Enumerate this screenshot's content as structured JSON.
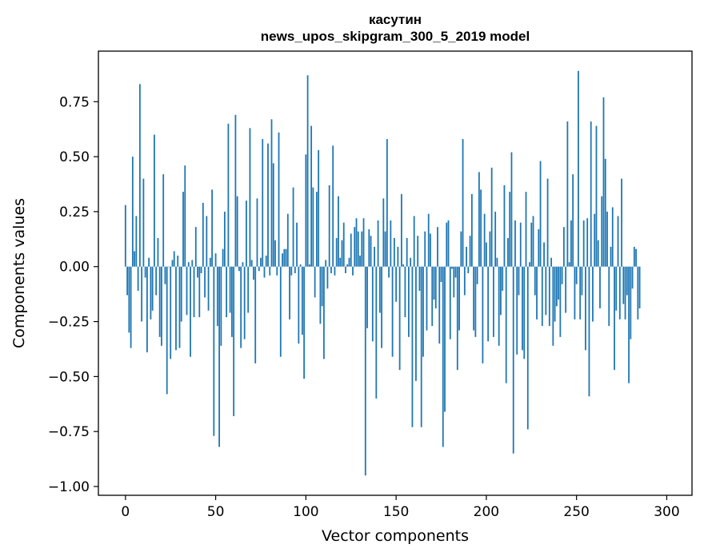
{
  "chart_data": {
    "type": "bar",
    "title_line1": "касутин",
    "title_line2": "news_upos_skipgram_300_5_2019 model",
    "xlabel": "Vector components",
    "ylabel": "Components values",
    "xlim": [
      -15,
      314
    ],
    "ylim": [
      -1.04,
      0.98
    ],
    "xticks": [
      0,
      50,
      100,
      150,
      200,
      250,
      300
    ],
    "xtick_labels": [
      "0",
      "50",
      "100",
      "150",
      "200",
      "250",
      "300"
    ],
    "yticks": [
      -1.0,
      -0.75,
      -0.5,
      -0.25,
      0.0,
      0.25,
      0.5,
      0.75
    ],
    "ytick_labels": [
      "−1.00",
      "−0.75",
      "−0.50",
      "−0.25",
      "0.00",
      "0.25",
      "0.50",
      "0.75"
    ],
    "bar_color": "#1f77b4",
    "values": [
      0.28,
      -0.13,
      -0.3,
      -0.37,
      0.5,
      0.07,
      0.23,
      -0.11,
      0.83,
      -0.25,
      0.4,
      -0.05,
      -0.39,
      0.04,
      -0.24,
      -0.2,
      0.6,
      -0.13,
      0.13,
      -0.32,
      -0.36,
      0.42,
      -0.08,
      -0.58,
      0.0,
      -0.42,
      0.03,
      0.07,
      -0.38,
      0.05,
      -0.37,
      -0.25,
      0.34,
      0.46,
      -0.22,
      0.02,
      -0.41,
      0.03,
      -0.23,
      0.18,
      -0.05,
      -0.23,
      -0.03,
      0.29,
      -0.14,
      0.23,
      -0.2,
      0.04,
      0.35,
      -0.77,
      0.06,
      -0.27,
      -0.82,
      -0.36,
      0.08,
      0.25,
      -0.23,
      0.65,
      -0.21,
      -0.32,
      -0.68,
      0.69,
      0.32,
      -0.02,
      -0.37,
      0.02,
      -0.33,
      0.3,
      -0.21,
      0.63,
      0.03,
      -0.06,
      -0.44,
      0.31,
      -0.02,
      0.04,
      0.58,
      -0.05,
      0.05,
      0.56,
      -0.04,
      0.67,
      0.47,
      0.12,
      -0.04,
      0.61,
      -0.41,
      0.06,
      0.08,
      0.08,
      0.24,
      -0.24,
      -0.04,
      0.36,
      -0.03,
      0.2,
      -0.35,
      0.01,
      -0.31,
      -0.51,
      0.51,
      0.87,
      0.01,
      0.64,
      0.36,
      -0.14,
      0.34,
      0.53,
      -0.26,
      -0.18,
      -0.42,
      0.03,
      -0.1,
      0.37,
      -0.03,
      0.55,
      -0.04,
      0.13,
      0.32,
      0.04,
      0.12,
      0.2,
      -0.03,
      0.01,
      0.04,
      0.15,
      -0.04,
      0.18,
      0.22,
      0.16,
      0.05,
      0.16,
      0.22,
      -0.95,
      -0.28,
      0.17,
      0.14,
      -0.34,
      0.09,
      -0.6,
      0.21,
      -0.21,
      -0.37,
      0.31,
      0.16,
      0.58,
      -0.05,
      0.21,
      -0.41,
      0.13,
      -0.16,
      0.09,
      -0.47,
      0.33,
      0.01,
      -0.23,
      0.13,
      -0.32,
      0.04,
      -0.73,
      0.23,
      -0.52,
      0.14,
      -0.11,
      -0.73,
      -0.41,
      0.16,
      -0.29,
      0.24,
      0.15,
      -0.27,
      -0.15,
      -0.19,
      0.18,
      -0.35,
      -0.07,
      -0.82,
      -0.66,
      0.2,
      0.21,
      -0.33,
      -0.01,
      -0.14,
      -0.05,
      -0.47,
      -0.29,
      0.16,
      0.58,
      -0.13,
      0.09,
      -0.03,
      0.14,
      0.33,
      -0.29,
      -0.32,
      -0.08,
      0.43,
      0.35,
      -0.44,
      0.24,
      0.11,
      -0.34,
      0.16,
      0.45,
      -0.32,
      0.25,
      0.04,
      -0.36,
      -0.22,
      -0.11,
      0.37,
      -0.53,
      0.13,
      0.34,
      0.52,
      -0.85,
      0.21,
      -0.4,
      -0.13,
      0.2,
      -0.38,
      -0.42,
      0.34,
      -0.74,
      0.02,
      0.2,
      0.23,
      -0.13,
      -0.24,
      0.17,
      0.48,
      -0.27,
      0.11,
      -0.22,
      0.4,
      -0.27,
      0.04,
      -0.36,
      -0.25,
      -0.18,
      -0.15,
      -0.32,
      -0.08,
      0.18,
      -0.21,
      0.66,
      0.02,
      0.21,
      0.42,
      -0.24,
      -0.08,
      0.89,
      -0.24,
      -0.13,
      0.21,
      -0.38,
      0.22,
      -0.59,
      0.66,
      -0.25,
      0.24,
      0.64,
      0.12,
      -0.19,
      0.32,
      0.77,
      0.49,
      0.25,
      -0.27,
      0.09,
      0.27,
      -0.47,
      -0.2,
      0.23,
      -0.24,
      0.4,
      -0.17,
      -0.24,
      -0.13,
      -0.53,
      -0.33,
      -0.1,
      0.09,
      0.08,
      -0.24,
      -0.19
    ]
  }
}
